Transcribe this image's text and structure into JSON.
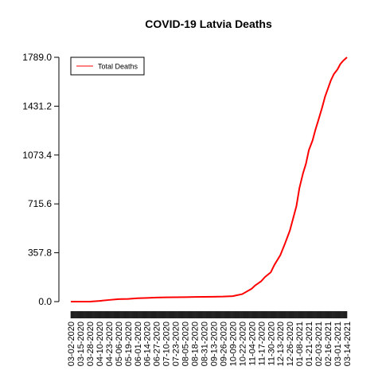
{
  "chart_data": {
    "type": "line",
    "title": "COVID-19 Latvia Deaths",
    "xlabel": "",
    "ylabel": "",
    "ylim": [
      0,
      1789.0
    ],
    "yticks": [
      "0.0",
      "357.8",
      "715.6",
      "1073.4",
      "1431.2",
      "1789.0"
    ],
    "xticks": [
      "03-02-2020",
      "03-15-2020",
      "03-28-2020",
      "04-10-2020",
      "04-23-2020",
      "05-06-2020",
      "05-19-2020",
      "06-01-2020",
      "06-14-2020",
      "06-27-2020",
      "07-10-2020",
      "07-23-2020",
      "08-05-2020",
      "08-18-2020",
      "08-31-2020",
      "09-13-2020",
      "09-26-2020",
      "10-09-2020",
      "10-22-2020",
      "11-04-2020",
      "11-17-2020",
      "11-30-2020",
      "12-13-2020",
      "12-26-2020",
      "01-08-2021",
      "01-21-2021",
      "02-03-2021",
      "02-16-2021",
      "03-01-2021",
      "03-14-2021"
    ],
    "legend": {
      "position": "top-left",
      "entries": [
        "Total Deaths"
      ]
    },
    "colors": {
      "line": "#ff0000"
    },
    "grid": false,
    "series": [
      {
        "name": "Total Deaths",
        "x": [
          "03-02-2020",
          "03-15-2020",
          "03-28-2020",
          "04-10-2020",
          "04-23-2020",
          "05-06-2020",
          "05-19-2020",
          "06-01-2020",
          "06-14-2020",
          "06-27-2020",
          "07-10-2020",
          "07-23-2020",
          "08-05-2020",
          "08-18-2020",
          "08-31-2020",
          "09-13-2020",
          "09-26-2020",
          "10-09-2020",
          "10-22-2020",
          "11-04-2020",
          "11-09-2020",
          "11-17-2020",
          "11-22-2020",
          "11-30-2020",
          "12-05-2020",
          "12-13-2020",
          "12-19-2020",
          "12-26-2020",
          "12-31-2020",
          "01-04-2021",
          "01-08-2021",
          "01-13-2021",
          "01-17-2021",
          "01-21-2021",
          "01-26-2021",
          "01-30-2021",
          "02-03-2021",
          "02-08-2021",
          "02-12-2021",
          "02-16-2021",
          "02-20-2021",
          "02-24-2021",
          "03-01-2021",
          "03-05-2021",
          "03-09-2021",
          "03-14-2021"
        ],
        "values": [
          0,
          0,
          0,
          5,
          12,
          18,
          20,
          25,
          27,
          30,
          31,
          32,
          33,
          34,
          35,
          36,
          37,
          40,
          55,
          95,
          120,
          150,
          180,
          215,
          270,
          340,
          420,
          520,
          620,
          700,
          830,
          940,
          1010,
          1110,
          1180,
          1260,
          1330,
          1420,
          1500,
          1560,
          1620,
          1665,
          1700,
          1740,
          1765,
          1789
        ]
      }
    ]
  }
}
